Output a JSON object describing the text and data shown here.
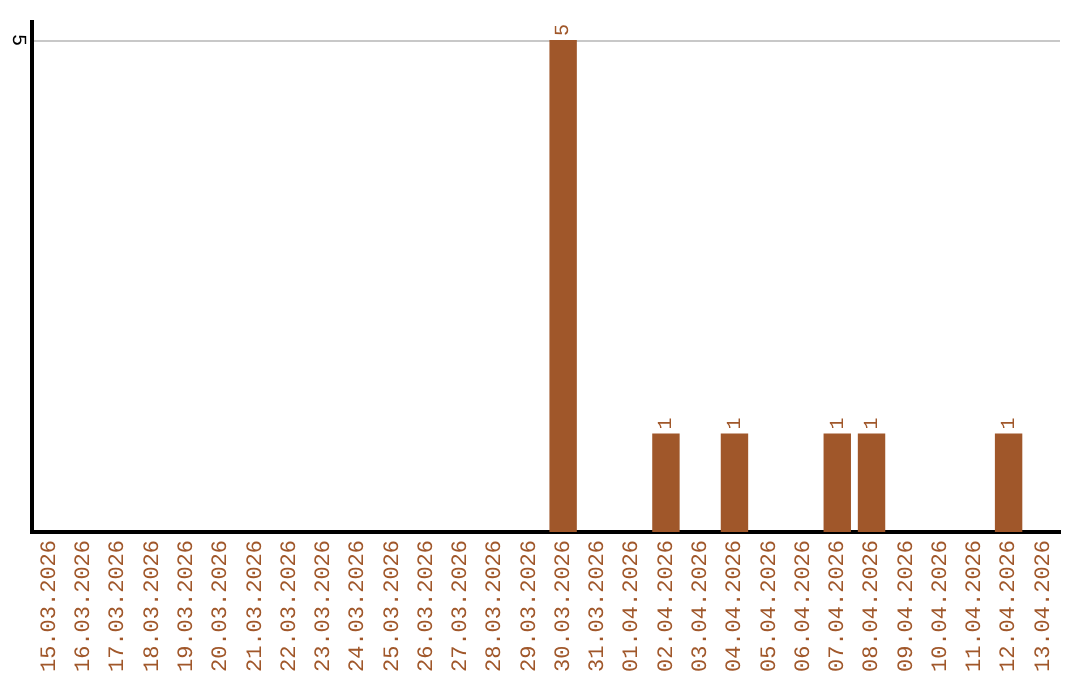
{
  "chart_data": {
    "type": "bar",
    "categories": [
      "15.03.2026",
      "16.03.2026",
      "17.03.2026",
      "18.03.2026",
      "19.03.2026",
      "20.03.2026",
      "21.03.2026",
      "22.03.2026",
      "23.03.2026",
      "24.03.2026",
      "25.03.2026",
      "26.03.2026",
      "27.03.2026",
      "28.03.2026",
      "29.03.2026",
      "30.03.2026",
      "31.03.2026",
      "01.04.2026",
      "02.04.2026",
      "03.04.2026",
      "04.04.2026",
      "05.04.2026",
      "06.04.2026",
      "07.04.2026",
      "08.04.2026",
      "09.04.2026",
      "10.04.2026",
      "11.04.2026",
      "12.04.2026",
      "13.04.2026"
    ],
    "values": [
      null,
      null,
      null,
      null,
      null,
      null,
      null,
      null,
      null,
      null,
      null,
      null,
      null,
      null,
      null,
      5,
      null,
      null,
      1,
      null,
      1,
      null,
      null,
      1,
      1,
      null,
      null,
      null,
      1,
      null
    ],
    "data_labels": true,
    "ref_lines": [
      {
        "axis": "y",
        "value": 5,
        "label": "5",
        "color": "#c8c8c8"
      }
    ],
    "color": "#a0572a",
    "legend": false
  }
}
